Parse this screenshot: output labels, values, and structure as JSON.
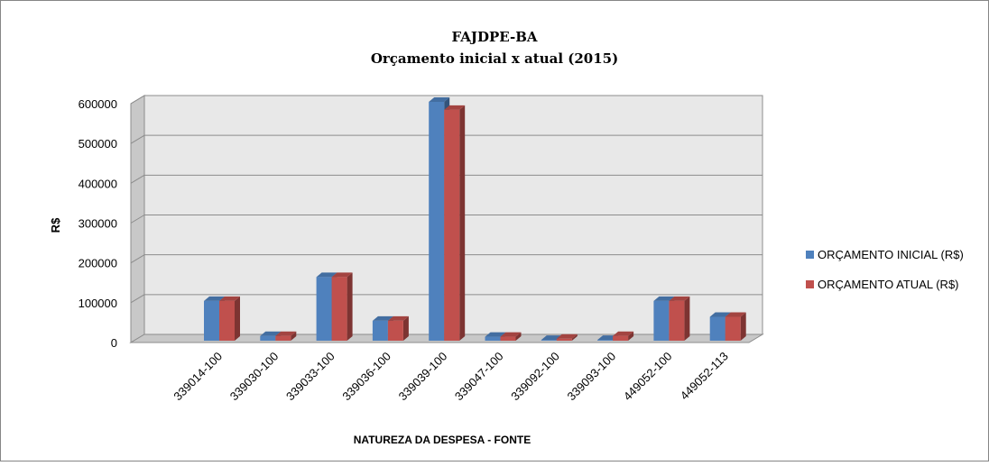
{
  "chart_data": {
    "type": "bar3d",
    "title": "FAJDPE-BA",
    "subtitle": "Orçamento inicial x atual (2015)",
    "x_label": "NATUREZA DA DESPESA - FONTE",
    "y_label": "R$",
    "categories": [
      "339014-100",
      "339030-100",
      "339033-100",
      "339036-100",
      "339039-100",
      "339047-100",
      "339092-100",
      "339093-100",
      "449052-100",
      "449052-113"
    ],
    "series": [
      {
        "name": "ORÇAMENTO INICIAL (R$)",
        "color": "#4f81bd",
        "values": [
          100000,
          12000,
          160000,
          50000,
          600000,
          10000,
          2000,
          2000,
          100000,
          60000
        ]
      },
      {
        "name": "ORÇAMENTO ATUAL (R$)",
        "color": "#c0504d",
        "values": [
          100000,
          12000,
          160000,
          50000,
          580000,
          10000,
          5000,
          12000,
          100000,
          60000
        ]
      }
    ],
    "ylim": [
      0,
      600000
    ],
    "yticks": [
      0,
      100000,
      200000,
      300000,
      400000,
      500000,
      600000
    ],
    "grid": true,
    "legend": "right"
  }
}
